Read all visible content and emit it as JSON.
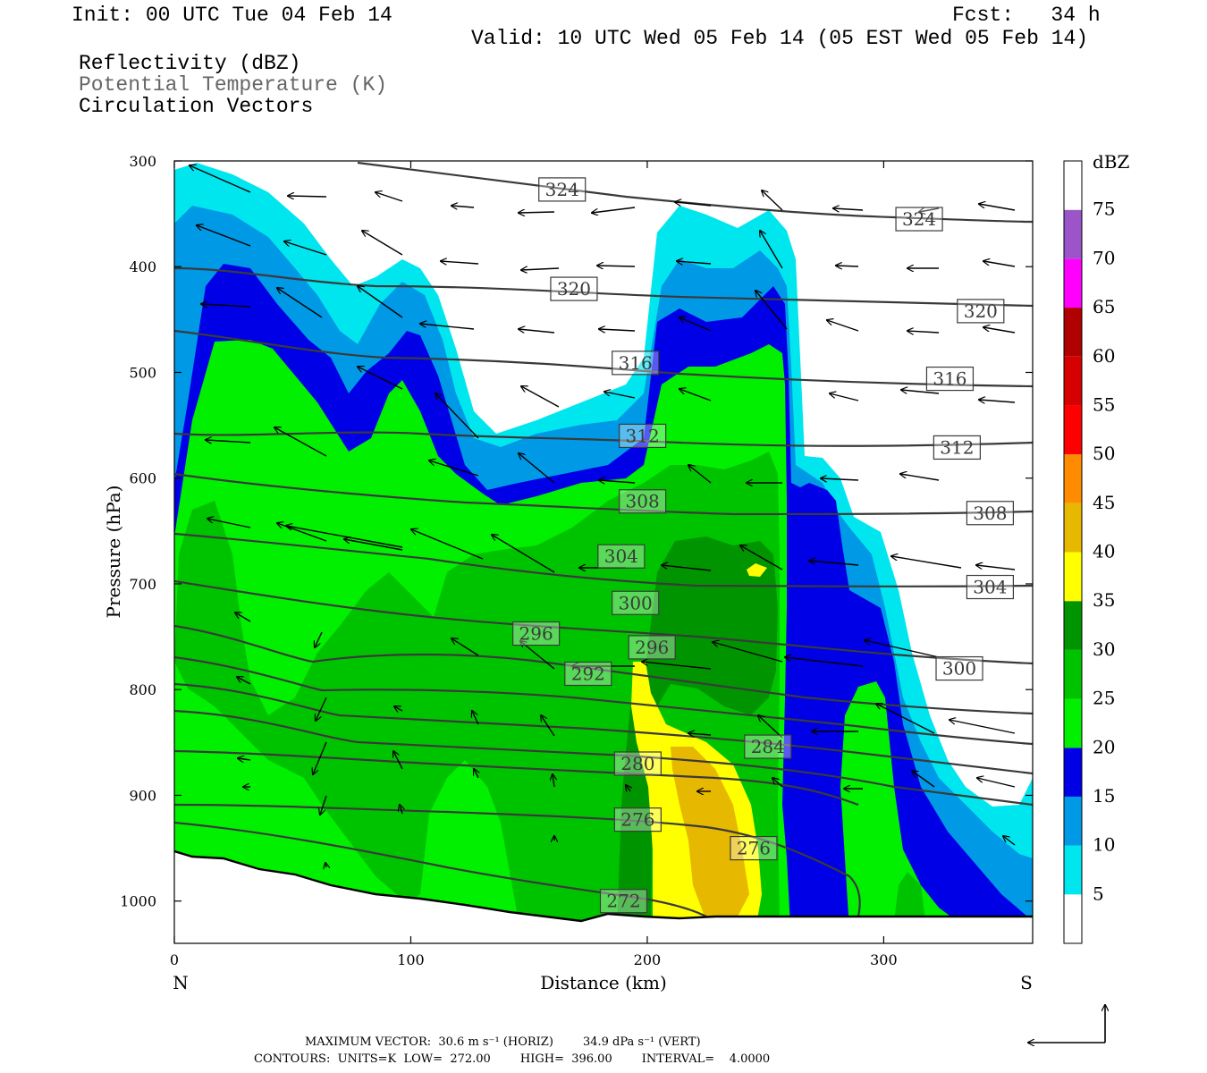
{
  "header": {
    "init": "Init: 00 UTC Tue 04 Feb 14",
    "fcst": "Fcst:   34 h",
    "valid": "Valid: 10 UTC Wed 05 Feb 14 (05 EST Wed 05 Feb 14)",
    "fields": [
      "Reflectivity (dBZ)",
      "Potential Temperature (K)",
      "Circulation Vectors"
    ]
  },
  "footer": {
    "max_vector": "MAXIMUM VECTOR:  30.6 m s⁻¹ (HORIZ)        34.9 dPa s⁻¹ (VERT)",
    "contours": "CONTOURS:  UNITS=K  LOW=  272.00        HIGH=  396.00        INTERVAL=    4.0000"
  },
  "chart_data": {
    "type": "cross-section",
    "xlabel": "Distance (km)",
    "ylabel": "Pressure (hPa)",
    "xlim": [
      0,
      363
    ],
    "ylim": [
      1040,
      300
    ],
    "x_ticks": [
      0,
      100,
      200,
      300
    ],
    "y_ticks": [
      300,
      400,
      500,
      600,
      700,
      800,
      900,
      1000
    ],
    "x_end_labels": {
      "left": "N",
      "right": "S"
    },
    "colorbar": {
      "unit": "dBZ",
      "levels": [
        5,
        10,
        15,
        20,
        25,
        30,
        35,
        40,
        45,
        50,
        55,
        60,
        65,
        70,
        75
      ],
      "colors": [
        "#ffffff",
        "#00e6ef",
        "#0099e6",
        "#0000e6",
        "#00f000",
        "#00c300",
        "#009500",
        "#ffff00",
        "#e6b800",
        "#ff8c00",
        "#ff0000",
        "#d60000",
        "#b00000",
        "#ff00ff",
        "#9c55c8",
        "#ffffff"
      ]
    },
    "theta_labels": [
      {
        "value": "324",
        "x": 164,
        "p": 327
      },
      {
        "value": "324",
        "x": 315,
        "p": 355
      },
      {
        "value": "320",
        "x": 169,
        "p": 421
      },
      {
        "value": "320",
        "x": 341,
        "p": 442
      },
      {
        "value": "316",
        "x": 195,
        "p": 491
      },
      {
        "value": "316",
        "x": 328,
        "p": 506
      },
      {
        "value": "312",
        "x": 198,
        "p": 560
      },
      {
        "value": "312",
        "x": 331,
        "p": 571
      },
      {
        "value": "308",
        "x": 198,
        "p": 622
      },
      {
        "value": "308",
        "x": 345,
        "p": 633
      },
      {
        "value": "304",
        "x": 189,
        "p": 674
      },
      {
        "value": "304",
        "x": 345,
        "p": 703
      },
      {
        "value": "300",
        "x": 195,
        "p": 718
      },
      {
        "value": "300",
        "x": 332,
        "p": 780
      },
      {
        "value": "296",
        "x": 153,
        "p": 747
      },
      {
        "value": "296",
        "x": 202,
        "p": 760
      },
      {
        "value": "292",
        "x": 175,
        "p": 785
      },
      {
        "value": "284",
        "x": 251,
        "p": 854
      },
      {
        "value": "280",
        "x": 196,
        "p": 870
      },
      {
        "value": "276",
        "x": 196,
        "p": 923
      },
      {
        "value": "276",
        "x": 245,
        "p": 950
      },
      {
        "value": "272",
        "x": 190,
        "p": 1000
      }
    ]
  }
}
